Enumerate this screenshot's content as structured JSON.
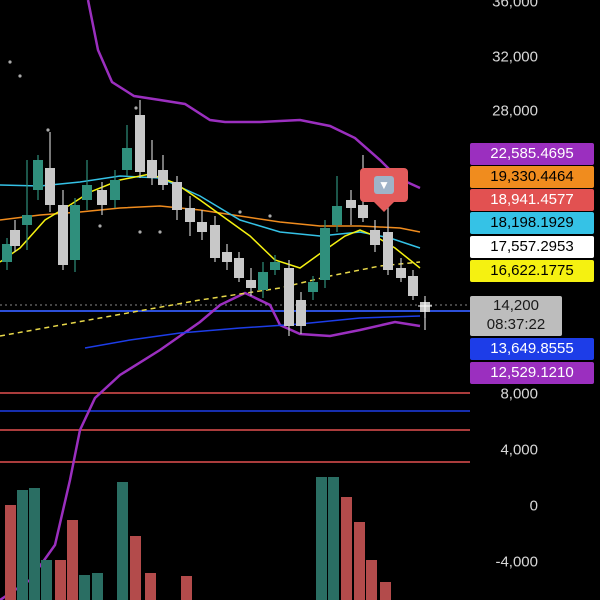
{
  "chart_data": {
    "type": "candlestick",
    "y_axis": {
      "upper_ticks": [
        "36,000",
        "32,000",
        "28,000"
      ],
      "lower_ticks": [
        "8,000",
        "4,000",
        "0",
        "-4,000"
      ]
    },
    "price_tags": [
      {
        "label": "22,585.4695",
        "bg": "#9b2fbf",
        "fg": "#ffffff"
      },
      {
        "label": "19,330.4464",
        "bg": "#f08c1e",
        "fg": "#000000"
      },
      {
        "label": "18,941.4577",
        "bg": "#e25151",
        "fg": "#ffffff"
      },
      {
        "label": "18,198.1929",
        "bg": "#35c2e6",
        "fg": "#000000"
      },
      {
        "label": "17,557.2953",
        "bg": "#ffffff",
        "fg": "#000000"
      },
      {
        "label": "16,622.1775",
        "bg": "#f5f111",
        "fg": "#000000"
      },
      {
        "label": "13,649.8555",
        "bg": "#1d3de8",
        "fg": "#ffffff"
      },
      {
        "label": "12,529.1210",
        "bg": "#9b2fbf",
        "fg": "#ffffff"
      }
    ],
    "current": {
      "price": "14,200",
      "countdown": "08:37:22"
    },
    "colors": {
      "up": "#2f8f7c",
      "down": "#c8c8c8",
      "volume_up": "#2a6e63",
      "volume_down": "#b34b4b"
    }
  },
  "icons": {
    "signal": "sell-signal-icon"
  }
}
